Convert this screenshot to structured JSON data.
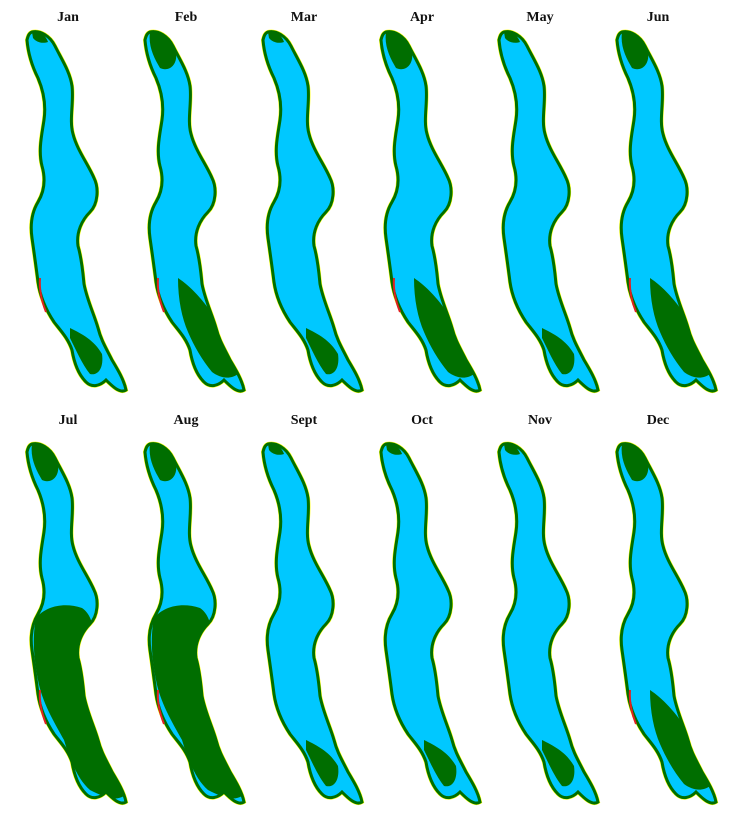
{
  "panels": [
    {
      "month": "Jan",
      "bloom": "low"
    },
    {
      "month": "Feb",
      "bloom": "moderate"
    },
    {
      "month": "Mar",
      "bloom": "low"
    },
    {
      "month": "Apr",
      "bloom": "moderate"
    },
    {
      "month": "May",
      "bloom": "low"
    },
    {
      "month": "Jun",
      "bloom": "moderate"
    },
    {
      "month": "Jul",
      "bloom": "high"
    },
    {
      "month": "Aug",
      "bloom": "high"
    },
    {
      "month": "Sept",
      "bloom": "low"
    },
    {
      "month": "Oct",
      "bloom": "low"
    },
    {
      "month": "Nov",
      "bloom": "low"
    },
    {
      "month": "Dec",
      "bloom": "moderate"
    }
  ],
  "colors": {
    "water": "#00c8ff",
    "vegetation": "#006e00",
    "shore_yellow": "#ffff00",
    "shore_red": "#e02020"
  }
}
